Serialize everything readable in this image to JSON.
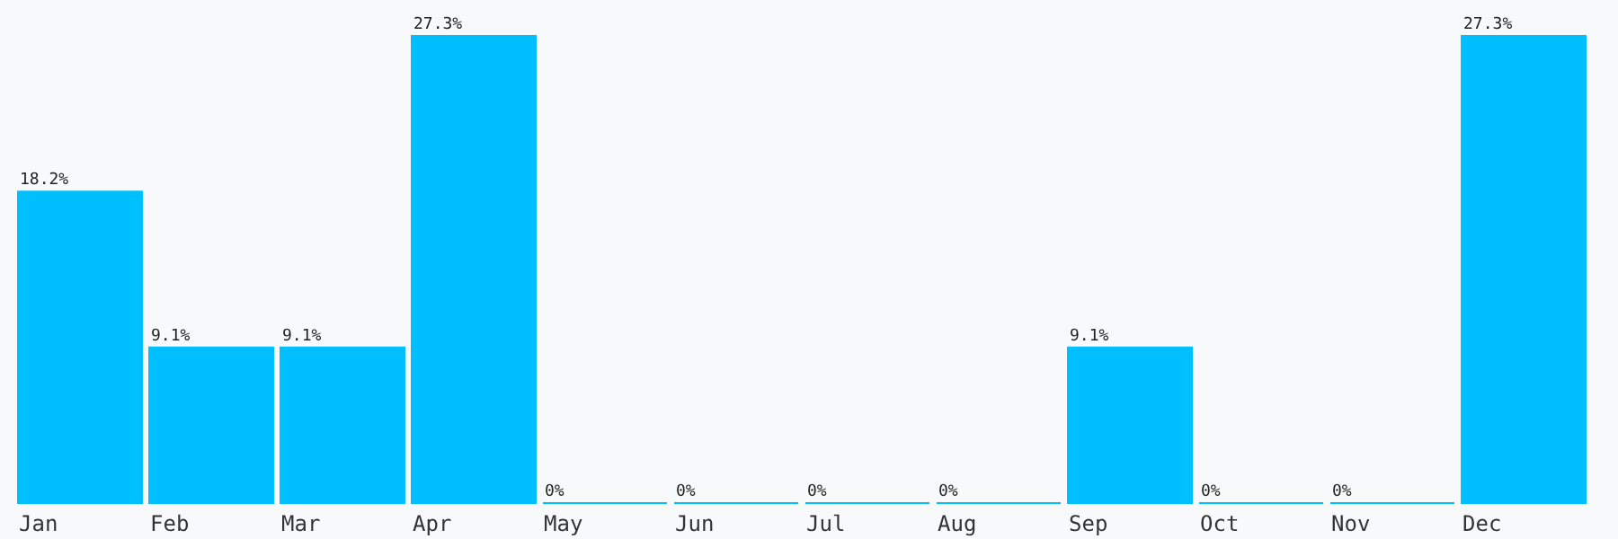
{
  "chart_data": {
    "type": "bar",
    "categories": [
      "Jan",
      "Feb",
      "Mar",
      "Apr",
      "May",
      "Jun",
      "Jul",
      "Aug",
      "Sep",
      "Oct",
      "Nov",
      "Dec"
    ],
    "values": [
      18.2,
      9.1,
      9.1,
      27.3,
      0,
      0,
      0,
      0,
      9.1,
      0,
      0,
      27.3
    ],
    "value_labels": [
      "18.2%",
      "9.1%",
      "9.1%",
      "27.3%",
      "0%",
      "0%",
      "0%",
      "0%",
      "9.1%",
      "0%",
      "0%",
      "27.3%"
    ],
    "color": "#00bfff"
  }
}
